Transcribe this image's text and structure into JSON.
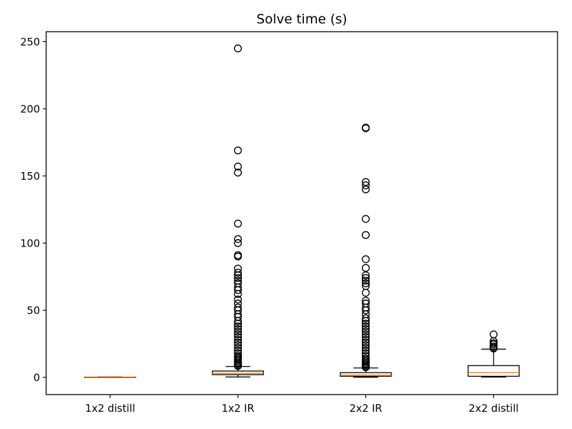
{
  "chart_data": {
    "type": "boxplot",
    "title": "Solve time (s)",
    "xlabel": "",
    "ylabel": "",
    "ylim": [
      -12.5,
      257
    ],
    "yticks": [
      0,
      50,
      100,
      150,
      200,
      250
    ],
    "grid": false,
    "categories": [
      "1x2 distill",
      "1x2 IR",
      "2x2 IR",
      "2x2 distill"
    ],
    "boxes": [
      {
        "label": "1x2 distill",
        "whisker_low": 0.0,
        "q1": 0.0,
        "median": 0.1,
        "q3": 0.2,
        "whisker_high": 0.3,
        "outliers": []
      },
      {
        "label": "1x2 IR",
        "whisker_low": 0.3,
        "q1": 2.0,
        "median": 3.0,
        "q3": 4.7,
        "whisker_high": 8.0,
        "outliers": [
          245,
          169,
          157,
          152.5,
          114.5,
          103,
          100,
          91,
          90,
          81,
          78,
          76,
          74,
          72,
          70,
          67,
          65,
          62,
          58,
          55,
          52,
          50,
          47,
          45,
          42,
          40,
          38,
          36,
          34,
          32,
          30,
          28,
          26,
          24,
          22,
          20,
          18,
          16,
          15,
          14,
          13,
          12,
          11,
          10,
          9,
          8.5
        ]
      },
      {
        "label": "2x2 IR",
        "whisker_low": 0.1,
        "q1": 0.8,
        "median": 1.7,
        "q3": 3.5,
        "whisker_high": 7.0,
        "outliers": [
          186,
          185.5,
          145.5,
          143,
          140,
          118,
          106,
          88,
          81.5,
          76,
          74,
          72,
          70,
          68,
          63,
          57,
          55,
          52,
          50,
          47,
          44,
          42,
          40,
          38,
          36,
          34,
          32,
          30,
          28,
          26,
          24,
          22,
          20,
          18,
          16,
          14,
          13,
          12,
          11,
          10,
          9,
          8,
          7.5
        ]
      },
      {
        "label": "2x2 distill",
        "whisker_low": 0.2,
        "q1": 0.8,
        "median": 3.5,
        "q3": 8.8,
        "whisker_high": 21.0,
        "outliers": [
          32,
          27,
          25.5,
          24.5,
          23,
          22,
          21.5
        ]
      }
    ]
  },
  "colors": {
    "median": "#ff7f0e",
    "box": "#000000",
    "background": "#ffffff"
  }
}
